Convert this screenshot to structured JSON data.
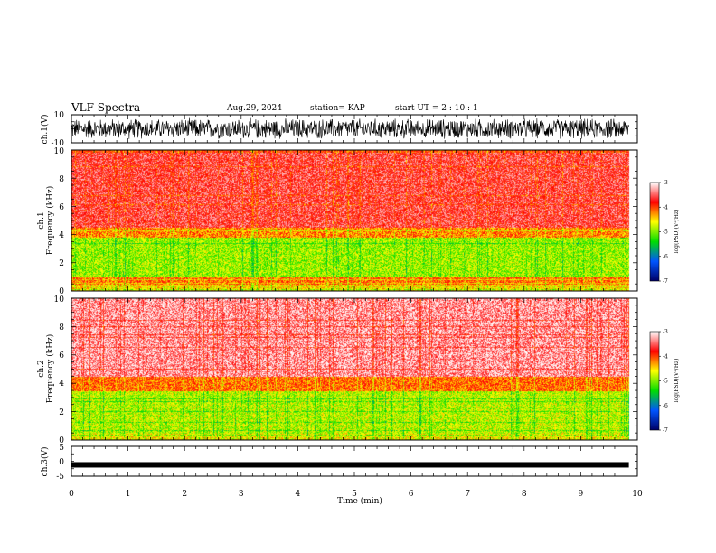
{
  "header": {
    "title": "VLF Spectra",
    "date": "Aug.29, 2024",
    "station": "station= KAP",
    "start": "start  UT =   2  : 10 : 1"
  },
  "colorbar": {
    "label": "log(PSD)(V²/Hz)",
    "ticks": [
      "-3",
      "-4",
      "-5",
      "-6",
      "-7"
    ],
    "stops": [
      "#ffffff",
      "#ff0000",
      "#ffff00",
      "#00dd00",
      "#0055ff",
      "#000066"
    ]
  },
  "chart_data": [
    {
      "type": "line",
      "name": "ch1-waveform",
      "ylabel": "ch.1(V)",
      "ylim": [
        -10,
        10
      ],
      "yticks": [
        "10",
        "-10"
      ],
      "x_range_min": [
        0,
        9.85
      ],
      "description_level": "dense noisy waveform spanning roughly -8 to +8 V"
    },
    {
      "type": "heatmap",
      "name": "ch1-spectrogram",
      "ylabel": "ch.1\nFrequency (kHz)",
      "ylim": [
        0,
        10
      ],
      "yticks": [
        "0",
        "2",
        "4",
        "6",
        "8",
        "10"
      ],
      "x_range_min": [
        0,
        9.85
      ],
      "value_range_logpsd": [
        -7,
        -3
      ],
      "band_profile_khz": [
        {
          "f_from": 0,
          "f_to": 0.5,
          "level": -4.5
        },
        {
          "f_from": 0.5,
          "f_to": 1.0,
          "level": -4.1
        },
        {
          "f_from": 1.0,
          "f_to": 3.8,
          "level": -4.9
        },
        {
          "f_from": 3.8,
          "f_to": 4.5,
          "level": -4.2
        },
        {
          "f_from": 4.5,
          "f_to": 10,
          "level": -3.6
        }
      ]
    },
    {
      "type": "heatmap",
      "name": "ch2-spectrogram",
      "ylabel": "ch.2\nFrequency (kHz)",
      "ylim": [
        0,
        10
      ],
      "yticks": [
        "0",
        "2",
        "4",
        "6",
        "8",
        "10"
      ],
      "x_range_min": [
        0,
        9.85
      ],
      "value_range_logpsd": [
        -7,
        -3
      ],
      "band_profile_khz": [
        {
          "f_from": 0,
          "f_to": 0.5,
          "level": -4.6
        },
        {
          "f_from": 0.5,
          "f_to": 3.5,
          "level": -4.8
        },
        {
          "f_from": 3.5,
          "f_to": 4.5,
          "level": -4.1
        },
        {
          "f_from": 4.5,
          "f_to": 10,
          "level": -3.3
        }
      ]
    },
    {
      "type": "line",
      "name": "ch3-waveform",
      "ylabel": "ch.3(V)",
      "ylim": [
        -5,
        5
      ],
      "yticks": [
        "5",
        "0",
        "-5"
      ],
      "x_range_min": [
        0,
        9.85
      ],
      "level": -1.2
    }
  ],
  "xaxis": {
    "label": "Time (min)",
    "ticks": [
      "0",
      "1",
      "2",
      "3",
      "4",
      "5",
      "6",
      "7",
      "8",
      "9",
      "10"
    ],
    "range": [
      0,
      10
    ]
  }
}
